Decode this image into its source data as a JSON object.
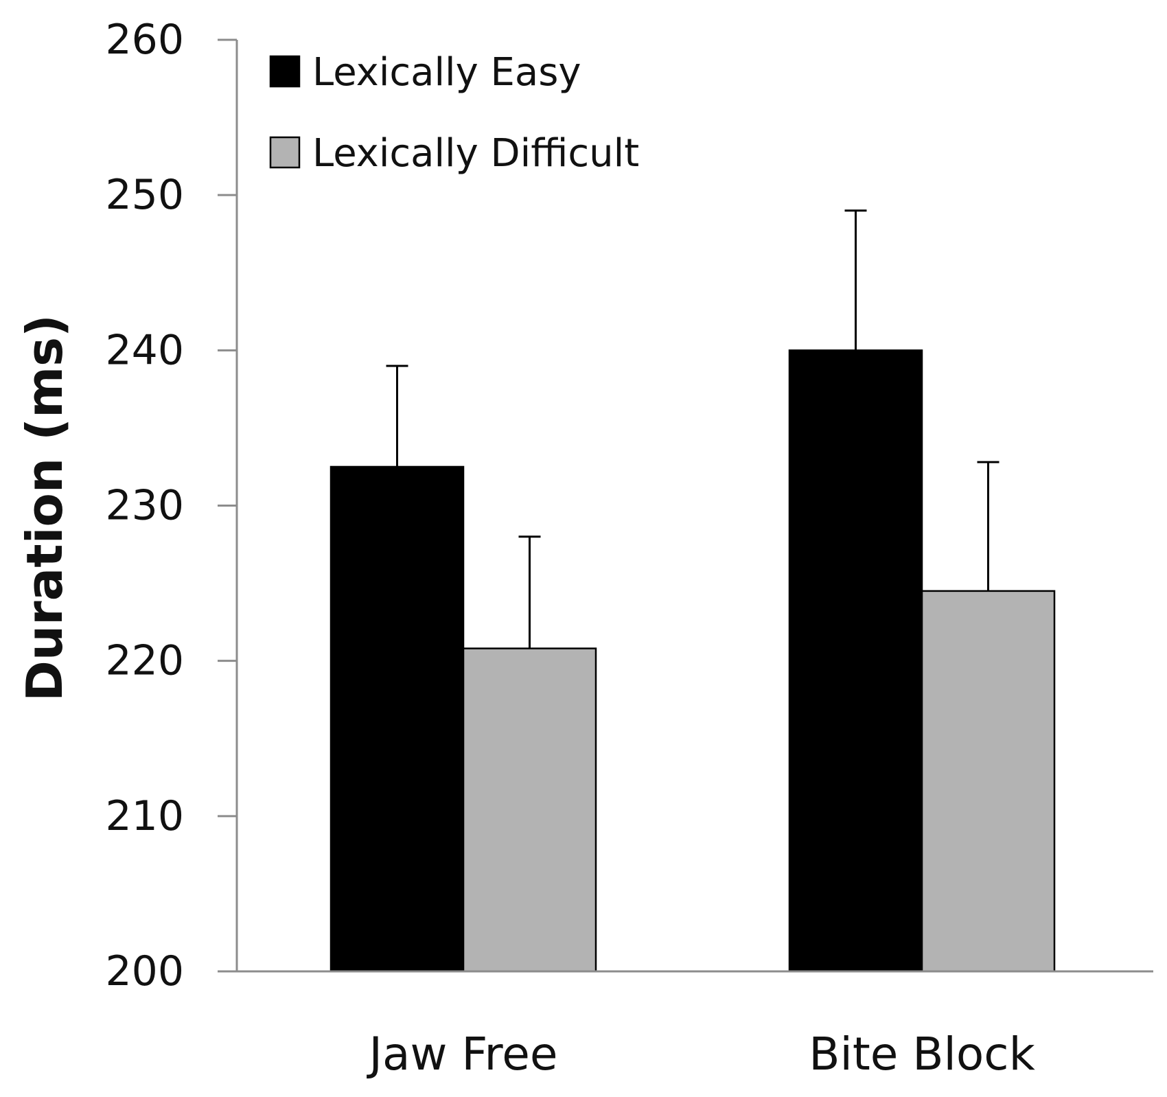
{
  "chart_data": {
    "type": "bar",
    "title": "",
    "xlabel": "",
    "ylabel": "Duration (ms)",
    "ylim": [
      200,
      260
    ],
    "yticks": [
      200,
      210,
      220,
      230,
      240,
      250,
      260
    ],
    "ytick_labels": [
      "200",
      "210",
      "220",
      "230",
      "240",
      "250",
      "260"
    ],
    "grid": false,
    "legend_position": "top-left",
    "categories": [
      "Jaw Free",
      "Bite Block"
    ],
    "series": [
      {
        "name": "Lexically Easy",
        "color": "#000000",
        "values": [
          232.5,
          240.0
        ],
        "error_upper": [
          239.0,
          249.0
        ]
      },
      {
        "name": "Lexically Difficult",
        "color": "#b3b3b3",
        "values": [
          220.8,
          224.5
        ],
        "error_upper": [
          228.0,
          232.8
        ]
      }
    ]
  }
}
